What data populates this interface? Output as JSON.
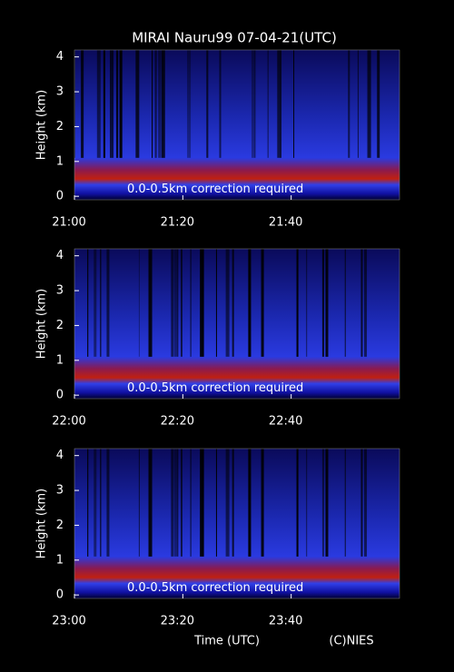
{
  "chart_data": [
    {
      "type": "heatmap",
      "title": "MIRAI Nauru99 07-04-21(UTC)",
      "ylabel": "Height (km)",
      "ylim": [
        -0.1,
        4.2
      ],
      "yticks": [
        0,
        1,
        2,
        3,
        4
      ],
      "xticks": [
        "21:00",
        "21:20",
        "21:40"
      ],
      "annotation": "0.0-0.5km correction required"
    },
    {
      "type": "heatmap",
      "ylabel": "Height (km)",
      "ylim": [
        -0.1,
        4.2
      ],
      "yticks": [
        0,
        1,
        2,
        3,
        4
      ],
      "xticks": [
        "22:00",
        "22:20",
        "22:40"
      ],
      "annotation": "0.0-0.5km correction required"
    },
    {
      "type": "heatmap",
      "ylabel": "Height (km)",
      "ylim": [
        -0.1,
        4.2
      ],
      "yticks": [
        0,
        1,
        2,
        3,
        4
      ],
      "xticks": [
        "23:00",
        "23:20",
        "23:40"
      ],
      "annotation": "0.0-0.5km correction required",
      "xlabel": "Time (UTC)",
      "credit": "(C)NIES"
    }
  ]
}
